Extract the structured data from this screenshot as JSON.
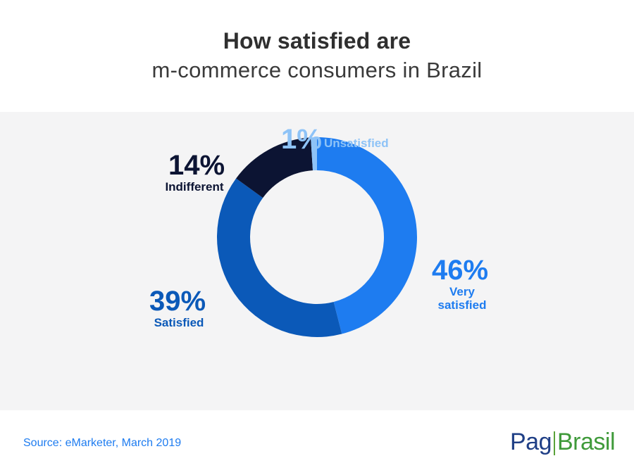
{
  "title": {
    "line1": "How satisfied are",
    "line2": "m-commerce consumers in Brazil"
  },
  "chart_data": {
    "type": "pie",
    "variant": "donut",
    "categories": [
      "Very satisfied",
      "Satisfied",
      "Indifferent",
      "Unsatisfied"
    ],
    "values": [
      46,
      39,
      14,
      1
    ],
    "value_labels": [
      "46%",
      "39%",
      "14%",
      "1%"
    ],
    "colors": [
      "#1e7cf0",
      "#0b59b8",
      "#0c1433",
      "#8ec3f7"
    ],
    "label_lines": {
      "very_satisfied": [
        "Very",
        "satisfied"
      ],
      "satisfied": [
        "Satisfied"
      ],
      "indifferent": [
        "Indifferent"
      ],
      "unsatisfied": [
        "Unsatisfied"
      ]
    }
  },
  "footer": {
    "source": "Source: eMarketer, March 2019",
    "logo_part1": "Pag",
    "logo_part2": "Brasil"
  },
  "colors": {
    "panel_bg": "#f4f4f5",
    "source_text": "#1e7cf0",
    "logo_blue": "#1f3f86",
    "logo_green": "#3f9a3a"
  }
}
